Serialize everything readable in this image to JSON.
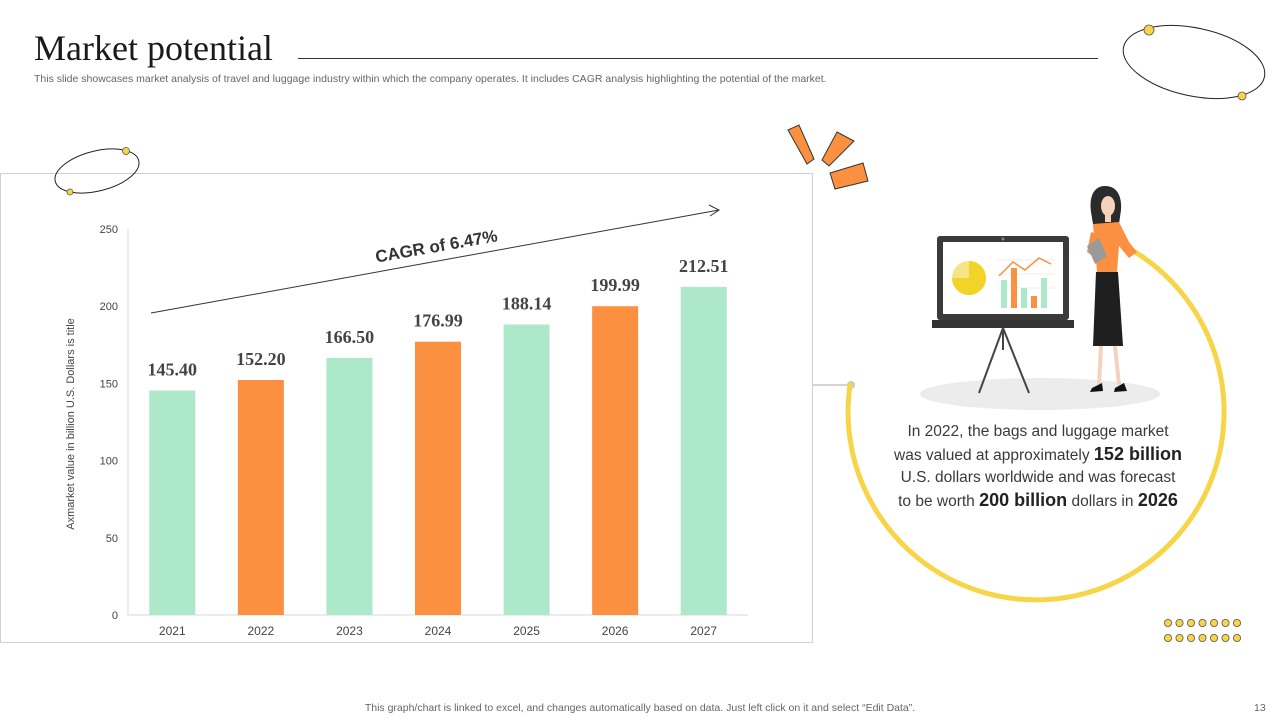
{
  "header": {
    "title": "Market potential",
    "subtitle": "This slide showcases market analysis of travel and luggage industry within which the company operates. It includes CAGR analysis highlighting the potential of the market."
  },
  "chart_data": {
    "type": "bar",
    "categories": [
      "2021",
      "2022",
      "2023",
      "2024",
      "2025",
      "2026",
      "2027"
    ],
    "values": [
      145.4,
      152.2,
      166.5,
      176.99,
      188.14,
      199.99,
      212.51
    ],
    "value_labels": [
      "145.40",
      "152.20",
      "166.50",
      "176.99",
      "188.14",
      "199.99",
      "212.51"
    ],
    "bar_colors": [
      "#ade8cb",
      "#fb9140",
      "#ade8cb",
      "#fb9140",
      "#ade8cb",
      "#fb9140",
      "#ade8cb"
    ],
    "ylabel": "Axmarket value in billion U.S. Dollars is title",
    "xlabel": "",
    "ylim": [
      0,
      250
    ],
    "yticks": [
      0,
      50,
      100,
      150,
      200,
      250
    ],
    "annotation": "CAGR of 6.47%",
    "legend": "none"
  },
  "info": {
    "t1": "In 2022, the bags and luggage market was valued at approximately ",
    "b1": "152 billion",
    "t2": " U.S. dollars worldwide and was forecast to be worth ",
    "b2": "200 billion",
    "t3": " dollars in ",
    "b3": "2026"
  },
  "footer": {
    "note": "This graph/chart is linked to excel,  and changes automatically based on data. Just left click on it and select “Edit Data”.",
    "page_number": "13"
  },
  "colors": {
    "accent_yellow": "#f8d548",
    "accent_orange": "#fb9140",
    "mint": "#ade8cb"
  }
}
